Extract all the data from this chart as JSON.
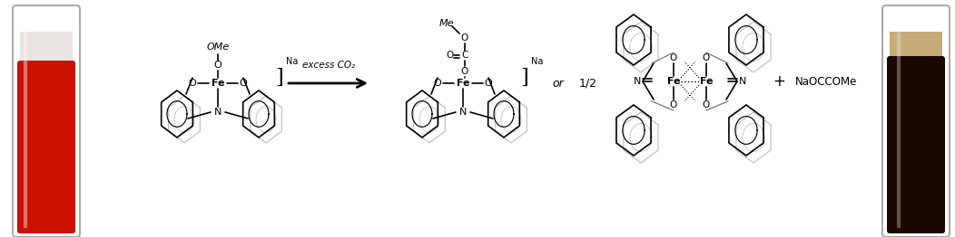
{
  "figsize": [
    10.52,
    2.62
  ],
  "dpi": 100,
  "bg_color": "#ffffff",
  "tube1_liquid": "#cc1100",
  "tube1_upper": "#e8e4e0",
  "tube2_liquid": "#1a0800",
  "tube2_upper": "#c8b890",
  "arrow_label": "excess CO₂",
  "bracket_label": "Na",
  "or_label": "or",
  "half_label": "1/2",
  "plus_label": "+",
  "product_label": "NaOCCOMe",
  "OMe_label": "OMe",
  "Me_label": "Me"
}
